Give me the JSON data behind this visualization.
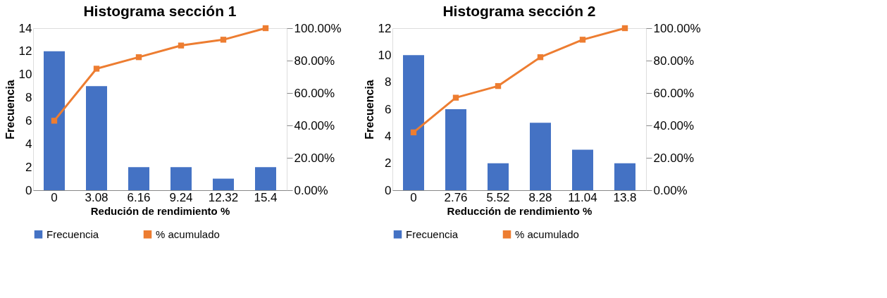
{
  "chart_data": [
    {
      "type": "bar",
      "title": "Histograma sección 1",
      "xlabel": "Redución de rendimiento %",
      "ylabel": "Frecuencia",
      "categories": [
        "0",
        "3.08",
        "6.16",
        "9.24",
        "12.32",
        "15.4"
      ],
      "series": [
        {
          "name": "Frecuencia",
          "color": "#4472c4",
          "values": [
            12,
            9,
            2,
            2,
            1,
            2
          ]
        },
        {
          "name": "% acumulado",
          "type": "line",
          "axis": "y2",
          "color": "#ed7d31",
          "values": [
            42.9,
            75,
            82.1,
            89.3,
            92.9,
            100
          ]
        }
      ],
      "ylim": [
        0,
        14
      ],
      "yticks": [
        0,
        2,
        4,
        6,
        8,
        10,
        12,
        14
      ],
      "y2lim": [
        0,
        100
      ],
      "y2ticks": [
        {
          "value": 0,
          "label": "0.00%"
        },
        {
          "value": 20,
          "label": "20.00%"
        },
        {
          "value": 40,
          "label": "40.00%"
        },
        {
          "value": 60,
          "label": "60.00%"
        },
        {
          "value": 80,
          "label": "80.00%"
        },
        {
          "value": 100,
          "label": "100.00%"
        }
      ],
      "marker": "square",
      "legend": "bottom",
      "grid": false
    },
    {
      "type": "bar",
      "title": "Histograma sección 2",
      "xlabel": "Reducción de rendimiento %",
      "ylabel": "Frecuencia",
      "categories": [
        "0",
        "2.76",
        "5.52",
        "8.28",
        "11.04",
        "13.8"
      ],
      "series": [
        {
          "name": "Frecuencia",
          "color": "#4472c4",
          "values": [
            10,
            6,
            2,
            5,
            3,
            2
          ]
        },
        {
          "name": "% acumulado",
          "type": "line",
          "axis": "y2",
          "color": "#ed7d31",
          "values": [
            35.7,
            57.1,
            64.3,
            82.1,
            92.9,
            100
          ]
        }
      ],
      "ylim": [
        0,
        12
      ],
      "yticks": [
        0,
        2,
        4,
        6,
        8,
        10,
        12
      ],
      "y2lim": [
        0,
        100
      ],
      "y2ticks": [
        {
          "value": 0,
          "label": "0.00%"
        },
        {
          "value": 20,
          "label": "20.00%"
        },
        {
          "value": 40,
          "label": "40.00%"
        },
        {
          "value": 60,
          "label": "60.00%"
        },
        {
          "value": 80,
          "label": "80.00%"
        },
        {
          "value": 100,
          "label": "100.00%"
        }
      ],
      "marker": "square",
      "legend": "bottom",
      "grid": false
    }
  ]
}
